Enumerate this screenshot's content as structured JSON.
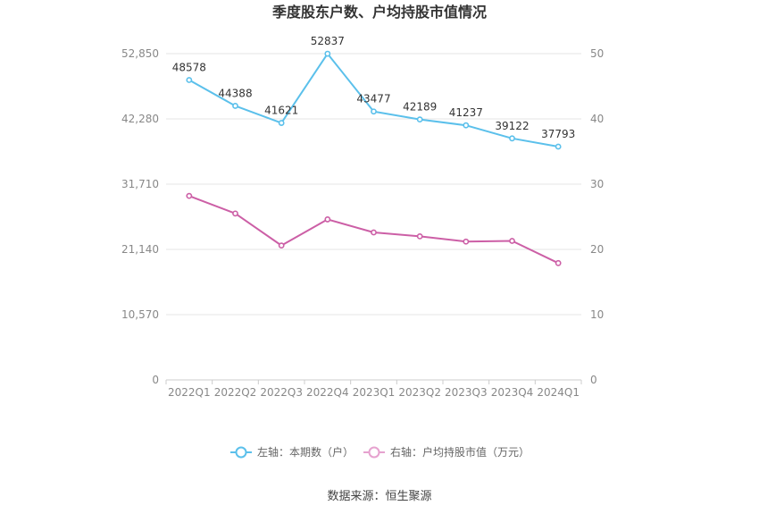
{
  "title": "季度股东户数、户均持股市值情况",
  "source": "数据来源：恒生聚源",
  "chart_data": {
    "type": "line",
    "categories": [
      "2022Q1",
      "2022Q2",
      "2022Q3",
      "2022Q4",
      "2023Q1",
      "2023Q2",
      "2023Q3",
      "2023Q4",
      "2024Q1"
    ],
    "series": [
      {
        "name": "左轴：本期数（户）",
        "axis": "left",
        "color": "#5bc0eb",
        "values": [
          48578,
          44388,
          41621,
          52837,
          43477,
          42189,
          41237,
          39122,
          37793
        ],
        "labels": [
          "48578",
          "44388",
          "41621",
          "52837",
          "43477",
          "42189",
          "41237",
          "39122",
          "37793"
        ]
      },
      {
        "name": "右轴：户均持股市值（万元）",
        "axis": "right",
        "color": "#cc5fa6",
        "values": [
          28.2,
          25.5,
          20.6,
          24.6,
          22.6,
          22.0,
          21.2,
          21.3,
          17.9
        ]
      }
    ],
    "y_left": {
      "min": 0,
      "max": 52850,
      "ticks": [
        "0",
        "10,570",
        "21,140",
        "31,710",
        "42,280",
        "52,850"
      ],
      "tick_values": [
        0,
        10570,
        21140,
        31710,
        42280,
        52850
      ]
    },
    "y_right": {
      "min": 0,
      "max": 50,
      "ticks": [
        "0",
        "10",
        "20",
        "30",
        "40",
        "50"
      ],
      "tick_values": [
        0,
        10,
        20,
        30,
        40,
        50
      ]
    },
    "grid": true,
    "legend_position": "bottom"
  }
}
